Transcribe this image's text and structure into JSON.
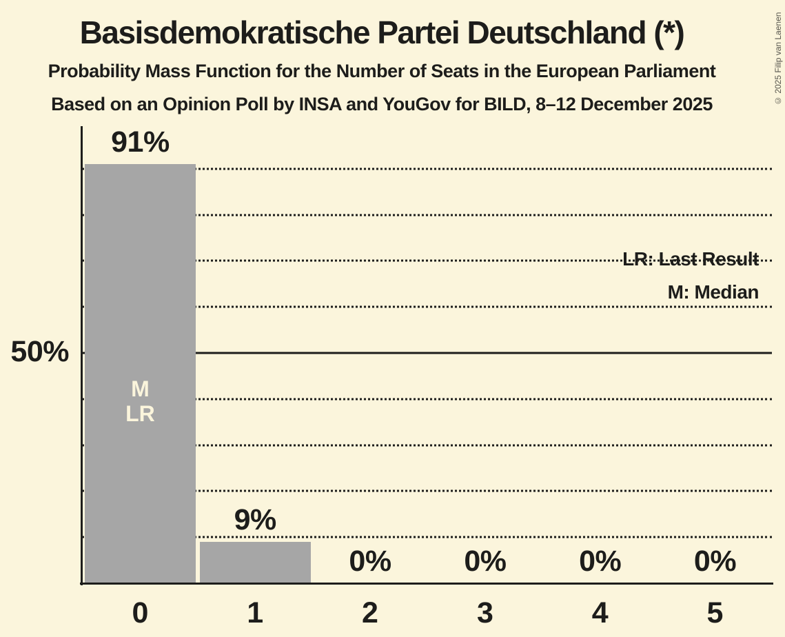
{
  "title": "Basisdemokratische Partei Deutschland (*)",
  "subtitle": "Probability Mass Function for the Number of Seats in the European Parliament",
  "source_line": "Based on an Opinion Poll by INSA and YouGov for BILD, 8–12 December 2025",
  "copyright": "© 2025 Filip van Laenen",
  "legend": {
    "last_result": "LR: Last Result",
    "median": "M: Median"
  },
  "y_axis": {
    "label": "50%"
  },
  "annotations": {
    "median": "M",
    "last_result": "LR"
  },
  "colors": {
    "background": "#FBF5DC",
    "bar": "#A6A6A6",
    "text": "#1D1D1B",
    "bar_label": "#FBF5DC"
  },
  "chart_data": {
    "type": "bar",
    "title": "Basisdemokratische Partei Deutschland (*)",
    "subtitle": "Probability Mass Function for the Number of Seats in the European Parliament",
    "categories": [
      "0",
      "1",
      "2",
      "3",
      "4",
      "5"
    ],
    "values": [
      91,
      9,
      0,
      0,
      0,
      0
    ],
    "value_labels": [
      "91%",
      "9%",
      "0%",
      "0%",
      "0%",
      "0%"
    ],
    "ylim": [
      0,
      100
    ],
    "y_tick_labels": [
      "50%"
    ],
    "gridline_step_percent": 10,
    "solid_gridline_percent": 50,
    "grid_style": "dotted horizontal",
    "legend_position": "top-right",
    "median_category": "0",
    "last_result_category": "0"
  }
}
